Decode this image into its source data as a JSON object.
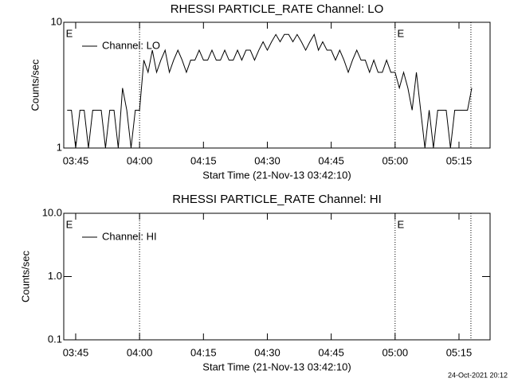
{
  "chart_data": [
    {
      "type": "line",
      "title": "RHESSI PARTICLE_RATE Channel: LO",
      "xlabel": "Start Time (21-Nov-13 03:42:10)",
      "ylabel": "Counts/sec",
      "ylog": true,
      "ylim": [
        1,
        10
      ],
      "yticks": [
        1,
        10
      ],
      "xlim": [
        222.2,
        322.3
      ],
      "xticks": [
        {
          "value": 225,
          "label": "03:45"
        },
        {
          "value": 240,
          "label": "04:00"
        },
        {
          "value": 255,
          "label": "04:15"
        },
        {
          "value": 270,
          "label": "04:30"
        },
        {
          "value": 285,
          "label": "04:45"
        },
        {
          "value": 300,
          "label": "05:00"
        },
        {
          "value": 315,
          "label": "05:15"
        }
      ],
      "x": [
        223,
        224,
        225,
        226,
        227,
        228,
        229,
        230,
        231,
        232,
        233,
        234,
        235,
        236,
        237,
        238,
        239,
        240,
        241,
        242,
        243,
        244,
        245,
        246,
        247,
        248,
        249,
        250,
        251,
        252,
        253,
        254,
        255,
        256,
        257,
        258,
        259,
        260,
        261,
        262,
        263,
        264,
        265,
        266,
        267,
        268,
        269,
        270,
        271,
        272,
        273,
        274,
        275,
        276,
        277,
        278,
        279,
        280,
        281,
        282,
        283,
        284,
        285,
        286,
        287,
        288,
        289,
        290,
        291,
        292,
        293,
        294,
        295,
        296,
        297,
        298,
        299,
        300,
        301,
        302,
        303,
        304,
        305,
        306,
        307,
        308,
        309,
        310,
        311,
        312,
        313,
        314,
        315,
        316,
        317,
        318
      ],
      "series": [
        {
          "name": "Channel: LO",
          "color": "#000000",
          "values": [
            2,
            2,
            1,
            2,
            2,
            1,
            2,
            2,
            2,
            1,
            2,
            2,
            1,
            3,
            2,
            1,
            2,
            2,
            5,
            4,
            6,
            4,
            5,
            6,
            4,
            5,
            6,
            5,
            4,
            5,
            5,
            6,
            5,
            5,
            6,
            5,
            5,
            6,
            5,
            5,
            6,
            5,
            6,
            6,
            5,
            6,
            7,
            6,
            7,
            8,
            7,
            8,
            8,
            7,
            8,
            7,
            6,
            7,
            8,
            6,
            7,
            6,
            6,
            5,
            6,
            5,
            4,
            5,
            6,
            5,
            5,
            4,
            5,
            4,
            4,
            5,
            4,
            4,
            3,
            4,
            3,
            2,
            4,
            2,
            1,
            2,
            1,
            2,
            2,
            2,
            1,
            2,
            2,
            2,
            2,
            3
          ]
        }
      ],
      "vlines": [
        240,
        300,
        317.8
      ],
      "annotations": [
        {
          "text": "E",
          "x": 222.7
        },
        {
          "text": "E",
          "x": 300.5
        }
      ]
    },
    {
      "type": "line",
      "title": "RHESSI PARTICLE_RATE Channel: HI",
      "xlabel": "Start Time (21-Nov-13 03:42:10)",
      "ylabel": "Counts/sec",
      "ylog": true,
      "ylim": [
        0.1,
        10
      ],
      "yticks": [
        0.1,
        {
          "value": 1,
          "label": "1.0"
        },
        {
          "value": 10,
          "label": "10.0"
        }
      ],
      "xlim": [
        222.2,
        322.3
      ],
      "xticks": [
        {
          "value": 225,
          "label": "03:45"
        },
        {
          "value": 240,
          "label": "04:00"
        },
        {
          "value": 255,
          "label": "04:15"
        },
        {
          "value": 270,
          "label": "04:30"
        },
        {
          "value": 285,
          "label": "04:45"
        },
        {
          "value": 300,
          "label": "05:00"
        },
        {
          "value": 315,
          "label": "05:15"
        }
      ],
      "x": [],
      "series": [
        {
          "name": "Channel: HI",
          "color": "#000000",
          "values": []
        }
      ],
      "vlines": [
        240,
        300,
        317.8
      ],
      "annotations": [
        {
          "text": "E",
          "x": 222.7
        },
        {
          "text": "E",
          "x": 300.5
        }
      ]
    }
  ],
  "footer": "24-Oct-2021 20:12"
}
